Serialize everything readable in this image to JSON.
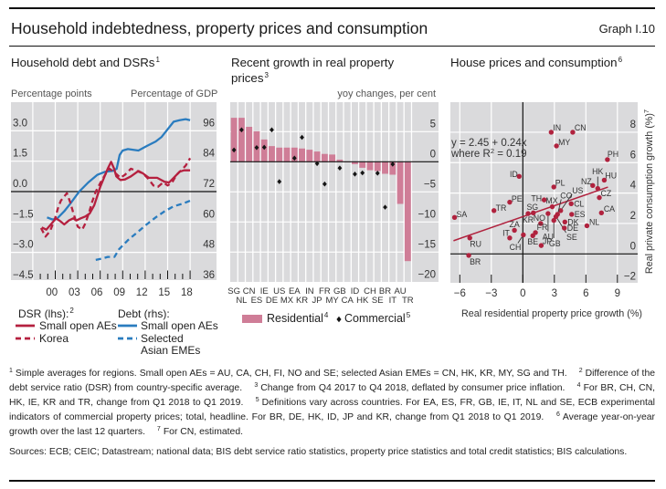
{
  "header": {
    "title": "Household indebtedness, property prices and consumption",
    "graph_number": "Graph I.10"
  },
  "chart_data": [
    {
      "type": "line",
      "title": "Household debt and DSRs",
      "title_note": "1",
      "grid": true,
      "left_axis": {
        "label": "Percentage points",
        "min": -4.5,
        "max": 4.4,
        "ticks": [
          {
            "value": -4.5,
            "label": "−4.5"
          },
          {
            "value": -3.0,
            "label": "−3.0"
          },
          {
            "value": -1.5,
            "label": "−1.5"
          },
          {
            "value": 0.0,
            "label": "0.0"
          },
          {
            "value": 1.5,
            "label": "1.5"
          },
          {
            "value": 3.0,
            "label": "3.0"
          }
        ]
      },
      "right_axis": {
        "label": "Percentage of GDP",
        "min": 36,
        "max": 107,
        "ticks": [
          {
            "value": 36,
            "label": "36"
          },
          {
            "value": 48,
            "label": "48"
          },
          {
            "value": 60,
            "label": "60"
          },
          {
            "value": 72,
            "label": "72"
          },
          {
            "value": 84,
            "label": "84"
          },
          {
            "value": 96,
            "label": "96"
          }
        ]
      },
      "x_axis": {
        "min": 1995,
        "max": 2022.5,
        "ticks": [
          {
            "year": 2000,
            "label": "00"
          },
          {
            "year": 2003,
            "label": "03"
          },
          {
            "year": 2006,
            "label": "06"
          },
          {
            "year": 2009,
            "label": "09"
          },
          {
            "year": 2012,
            "label": "12"
          },
          {
            "year": 2015,
            "label": "15"
          },
          {
            "year": 2018,
            "label": "18"
          }
        ]
      },
      "legend": {
        "position": "bottom",
        "lhs_heading": "DSR (lhs):",
        "lhs_note": "2",
        "rhs_heading": "Debt (rhs):"
      },
      "series": [
        {
          "id": "dsr-small-open-aes",
          "name": "Small open AEs",
          "group": "DSR (lhs)",
          "axis": "lhs",
          "style": "solid",
          "color": "#b5203f",
          "points": [
            [
              1999.2,
              -1.77
            ],
            [
              1999.8,
              -1.88
            ],
            [
              2000.5,
              -1.58
            ],
            [
              2001.1,
              -1.32
            ],
            [
              2001.7,
              -1.47
            ],
            [
              2002.2,
              -1.62
            ],
            [
              2002.8,
              -1.43
            ],
            [
              2003.4,
              -1.32
            ],
            [
              2003.8,
              -1.43
            ],
            [
              2004.4,
              -1.32
            ],
            [
              2005.0,
              -1.23
            ],
            [
              2005.6,
              -1.08
            ],
            [
              2006.2,
              -0.68
            ],
            [
              2006.6,
              -0.23
            ],
            [
              2007.0,
              0.23
            ],
            [
              2007.5,
              0.68
            ],
            [
              2008.0,
              1.13
            ],
            [
              2008.45,
              1.47
            ],
            [
              2008.85,
              1.13
            ],
            [
              2009.15,
              0.75
            ],
            [
              2009.7,
              0.57
            ],
            [
              2010.3,
              0.6
            ],
            [
              2011.1,
              0.75
            ],
            [
              2012.1,
              1.02
            ],
            [
              2012.7,
              0.9
            ],
            [
              2013.5,
              0.68
            ],
            [
              2014.6,
              0.68
            ],
            [
              2015.6,
              0.48
            ],
            [
              2016.2,
              0.45
            ],
            [
              2016.8,
              0.68
            ],
            [
              2017.6,
              0.98
            ],
            [
              2018.2,
              1.05
            ],
            [
              2019.0,
              1.05
            ]
          ]
        },
        {
          "id": "dsr-korea",
          "name": "Korea",
          "group": "DSR (lhs)",
          "axis": "lhs",
          "style": "dashed",
          "color": "#b5203f",
          "points": [
            [
              1999.1,
              -1.8
            ],
            [
              1999.7,
              -2.22
            ],
            [
              2000.3,
              -1.95
            ],
            [
              2000.95,
              -1.35
            ],
            [
              2001.35,
              -0.83
            ],
            [
              2001.75,
              -0.45
            ],
            [
              2002.55,
              -0.08
            ],
            [
              2003.0,
              -0.53
            ],
            [
              2003.4,
              -1.05
            ],
            [
              2004.0,
              -1.73
            ],
            [
              2004.6,
              -1.88
            ],
            [
              2005.0,
              -1.58
            ],
            [
              2005.5,
              -1.05
            ],
            [
              2005.9,
              -0.53
            ],
            [
              2006.4,
              0.0
            ],
            [
              2007.05,
              0.45
            ],
            [
              2007.65,
              0.83
            ],
            [
              2008.25,
              1.13
            ],
            [
              2009.05,
              0.9
            ],
            [
              2009.7,
              0.68
            ],
            [
              2010.3,
              0.83
            ],
            [
              2011.1,
              1.13
            ],
            [
              2011.9,
              1.02
            ],
            [
              2012.7,
              0.9
            ],
            [
              2013.5,
              0.6
            ],
            [
              2014.1,
              0.3
            ],
            [
              2014.7,
              0.23
            ],
            [
              2015.4,
              0.45
            ],
            [
              2016.0,
              0.3
            ],
            [
              2016.6,
              0.45
            ],
            [
              2017.2,
              0.83
            ],
            [
              2017.8,
              1.05
            ],
            [
              2018.4,
              1.28
            ],
            [
              2019.0,
              1.65
            ]
          ]
        },
        {
          "id": "debt-small-open-aes",
          "name": "Small open AEs",
          "group": "Debt (rhs)",
          "axis": "rhs",
          "style": "solid",
          "color": "#2a7cbf",
          "points": [
            [
              1999.9,
              61.8
            ],
            [
              2000.6,
              61.0
            ],
            [
              2001.2,
              61.2
            ],
            [
              2002.2,
              64.2
            ],
            [
              2003.0,
              67.2
            ],
            [
              2004.2,
              72.0
            ],
            [
              2005.4,
              75.6
            ],
            [
              2006.6,
              78.6
            ],
            [
              2007.6,
              79.8
            ],
            [
              2008.7,
              80.2
            ],
            [
              2009.2,
              81.0
            ],
            [
              2009.6,
              86.5
            ],
            [
              2010.0,
              88.2
            ],
            [
              2010.7,
              88.8
            ],
            [
              2012.1,
              88.2
            ],
            [
              2013.2,
              90.0
            ],
            [
              2014.4,
              91.8
            ],
            [
              2015.2,
              93.6
            ],
            [
              2016.0,
              96.6
            ],
            [
              2016.8,
              99.6
            ],
            [
              2017.6,
              100.2
            ],
            [
              2018.4,
              100.6
            ],
            [
              2019.0,
              100.2
            ]
          ]
        },
        {
          "id": "debt-selected-asian-emes",
          "name": "Selected Asian EMEs",
          "group": "Debt (rhs)",
          "axis": "rhs",
          "style": "dashed",
          "color": "#2a7cbf",
          "points": [
            [
              2006.4,
              45.0
            ],
            [
              2007.3,
              45.6
            ],
            [
              2008.0,
              46.2
            ],
            [
              2008.9,
              46.2
            ],
            [
              2009.5,
              49.2
            ],
            [
              2010.7,
              52.8
            ],
            [
              2011.9,
              55.8
            ],
            [
              2013.1,
              58.8
            ],
            [
              2014.4,
              61.8
            ],
            [
              2015.6,
              64.2
            ],
            [
              2016.8,
              66.2
            ],
            [
              2018.0,
              67.2
            ],
            [
              2019.0,
              68.4
            ]
          ]
        }
      ]
    },
    {
      "type": "bar",
      "title": "Recent growth in real property prices",
      "title_note": "3",
      "ylabel": "yoy changes, per cent",
      "ylim": [
        -20,
        9.85
      ],
      "grid": true,
      "legend_position": "bottom",
      "y_ticks": [
        {
          "value": 5,
          "label": "5"
        },
        {
          "value": 0,
          "label": "0"
        },
        {
          "value": -5,
          "label": "−5"
        },
        {
          "value": -10,
          "label": "−10"
        },
        {
          "value": -15,
          "label": "−15"
        },
        {
          "value": -20,
          "label": "−20"
        }
      ],
      "categories": [
        "SG",
        "NL",
        "CN",
        "ES",
        "IE",
        "DE",
        "US",
        "MX",
        "EA",
        "KR",
        "IN",
        "JP",
        "FR",
        "MY",
        "GB",
        "CA",
        "ID",
        "HK",
        "CH",
        "SE",
        "BR",
        "IT",
        "AU",
        "TR"
      ],
      "series": [
        {
          "name": "Residential",
          "note": "4",
          "type": "bar",
          "color": "#cf7d97",
          "values": [
            7.3,
            7.3,
            5.8,
            5.05,
            3.7,
            2.6,
            2.35,
            2.35,
            2.35,
            2.2,
            2.0,
            1.7,
            1.3,
            1.2,
            0.35,
            -0.1,
            -0.4,
            -1.0,
            -1.4,
            -1.55,
            -2.0,
            -2.15,
            -7.0,
            -16.5
          ]
        },
        {
          "name": "Commercial",
          "note": "5",
          "type": "marker",
          "color": "#151515",
          "values": [
            1.95,
            5.3,
            null,
            2.35,
            2.4,
            5.3,
            -3.3,
            null,
            0.6,
            4.05,
            null,
            -0.3,
            -3.7,
            null,
            -1.05,
            null,
            -2.05,
            -1.85,
            null,
            -1.9,
            -7.55,
            -0.4,
            null,
            null
          ]
        }
      ]
    },
    {
      "type": "scatter",
      "title": "House prices and consumption",
      "title_note": "6",
      "xlabel": "Real residential property price growth (%)",
      "ylabel": "Real private consumption growth (%)",
      "ylabel_note": "7",
      "xlim": [
        -6.9,
        10.95
      ],
      "ylim": [
        -1.9,
        10
      ],
      "grid": true,
      "point_color": "#b0223e",
      "x_ticks": [
        {
          "value": -6,
          "label": "−6"
        },
        {
          "value": -3,
          "label": "−3"
        },
        {
          "value": 0,
          "label": "0"
        },
        {
          "value": 3,
          "label": "3"
        },
        {
          "value": 6,
          "label": "6"
        },
        {
          "value": 9,
          "label": "9"
        }
      ],
      "y_ticks": [
        {
          "value": -2,
          "label": "−2"
        },
        {
          "value": 0,
          "label": "0"
        },
        {
          "value": 2,
          "label": "2"
        },
        {
          "value": 4,
          "label": "4"
        },
        {
          "value": 6,
          "label": "6"
        },
        {
          "value": 8,
          "label": "8"
        }
      ],
      "regression": {
        "intercept": 2.45,
        "slope": 0.24,
        "r_squared": 0.19,
        "x_range": [
          -6.6,
          8.1
        ],
        "equation_line1": "y = 2.45 + 0.24x",
        "equation_line2_prefix": "where R",
        "equation_line2_sup": "2",
        "equation_line2_suffix": " = 0.19"
      },
      "points": [
        {
          "label": "IN",
          "x": 2.7,
          "y": 8.0
        },
        {
          "label": "CN",
          "x": 4.75,
          "y": 8.0
        },
        {
          "label": "MY",
          "x": 3.2,
          "y": 7.1
        },
        {
          "label": "PH",
          "x": 8.05,
          "y": 6.2
        },
        {
          "label": "HK",
          "x": 7.13,
          "y": 4.3
        },
        {
          "label": "HU",
          "x": 7.75,
          "y": 4.85
        },
        {
          "label": "NZ",
          "x": 6.65,
          "y": 4.5
        },
        {
          "label": "PL",
          "x": 2.95,
          "y": 4.4
        },
        {
          "label": "CZ",
          "x": 7.28,
          "y": 3.7
        },
        {
          "label": "TH",
          "x": 2.03,
          "y": 3.55
        },
        {
          "label": "MX",
          "x": 2.8,
          "y": 3.1
        },
        {
          "label": "CL",
          "x": 4.6,
          "y": 3.3
        },
        {
          "label": "US",
          "x": 3.6,
          "y": 2.85
        },
        {
          "label": "CO",
          "x": 3.3,
          "y": 2.6
        },
        {
          "label": "SE",
          "x": 3.15,
          "y": 2.45
        },
        {
          "label": "GB",
          "x": 2.95,
          "y": 2.2
        },
        {
          "label": "AU",
          "x": 2.4,
          "y": 2.65
        },
        {
          "label": "ES",
          "x": 4.65,
          "y": 2.6
        },
        {
          "label": "CA",
          "x": 7.48,
          "y": 2.7
        },
        {
          "label": "DK",
          "x": 4.0,
          "y": 2.1
        },
        {
          "label": "DE",
          "x": 3.95,
          "y": 1.7
        },
        {
          "label": "NL",
          "x": 6.1,
          "y": 1.85
        },
        {
          "label": "NO",
          "x": 1.7,
          "y": 2.0
        },
        {
          "label": "SG",
          "x": 1.0,
          "y": 2.7
        },
        {
          "label": "KR",
          "x": 0.5,
          "y": 2.65
        },
        {
          "label": "FR",
          "x": 1.2,
          "y": 1.4
        },
        {
          "label": "BE",
          "x": 0.95,
          "y": 1.2
        },
        {
          "label": "JP",
          "x": 1.75,
          "y": 0.55
        },
        {
          "label": "CH",
          "x": 0.05,
          "y": 1.25
        },
        {
          "label": "ZA",
          "x": -0.8,
          "y": 1.55
        },
        {
          "label": "IT",
          "x": -1.25,
          "y": 1.05
        },
        {
          "label": "ID",
          "x": -0.35,
          "y": 5.1
        },
        {
          "label": "PE",
          "x": -1.25,
          "y": 3.4
        },
        {
          "label": "TR",
          "x": -2.75,
          "y": 2.85
        },
        {
          "label": "SA",
          "x": -6.5,
          "y": 2.4
        },
        {
          "label": "RU",
          "x": -5.05,
          "y": 1.05
        },
        {
          "label": "BR",
          "x": -5.15,
          "y": -0.1
        }
      ]
    }
  ],
  "footnotes": [
    {
      "n": "1",
      "text": "Simple averages for regions. Small open AEs = AU, CA, CH, FI, NO and SE; selected Asian EMEs = CN, HK, KR, MY, SG and TH."
    },
    {
      "n": "2",
      "text": "Difference of the debt service ratio (DSR) from country-specific average."
    },
    {
      "n": "3",
      "text": "Change from Q4 2017 to Q4 2018, deflated by consumer price inflation."
    },
    {
      "n": "4",
      "text": "For BR, CH, CN, HK, IE, KR and TR, change from Q1 2018 to Q1 2019."
    },
    {
      "n": "5",
      "text": "Definitions vary across countries. For EA, ES, FR, GB, IE, IT, NL and SE, ECB experimental indicators of commercial property prices; total, headline. For BR, DE, HK, ID, JP and KR, change from Q1 2018 to Q1 2019."
    },
    {
      "n": "6",
      "text": "Average year-on-year growth over the last 12 quarters."
    },
    {
      "n": "7",
      "text": "For CN, estimated."
    }
  ],
  "sources": "Sources: ECB; CEIC; Datastream; national data; BIS debt service ratio statistics, property price statistics and total credit statistics; BIS calculations."
}
